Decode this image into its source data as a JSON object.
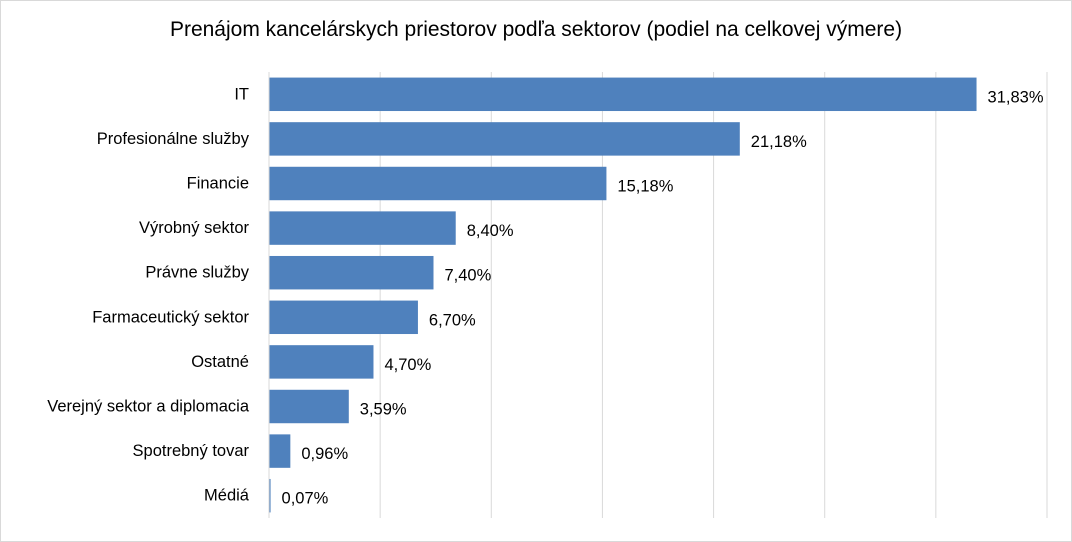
{
  "chart_data": {
    "type": "bar",
    "orientation": "horizontal",
    "title": "Prenájom kancelárskych priestorov podľa sektorov (podiel na celkovej výmere)",
    "xlabel": "",
    "ylabel": "",
    "xlim": [
      0,
      35
    ],
    "grid": "vertical",
    "legend": "none",
    "bar_color": "#4f81bd",
    "categories": [
      "IT",
      "Profesionálne služby",
      "Financie",
      "Výrobný sektor",
      "Právne služby",
      "Farmaceutický sektor",
      "Ostatné",
      "Verejný sektor a diplomacia",
      "Spotrebný tovar",
      "Médiá"
    ],
    "values": [
      31.83,
      21.18,
      15.18,
      8.4,
      7.4,
      6.7,
      4.7,
      3.59,
      0.96,
      0.07
    ],
    "data_labels": [
      "31,83%",
      "21,18%",
      "15,18%",
      "8,40%",
      "7,40%",
      "6,70%",
      "4,70%",
      "3,59%",
      "0,96%",
      "0,07%"
    ]
  }
}
